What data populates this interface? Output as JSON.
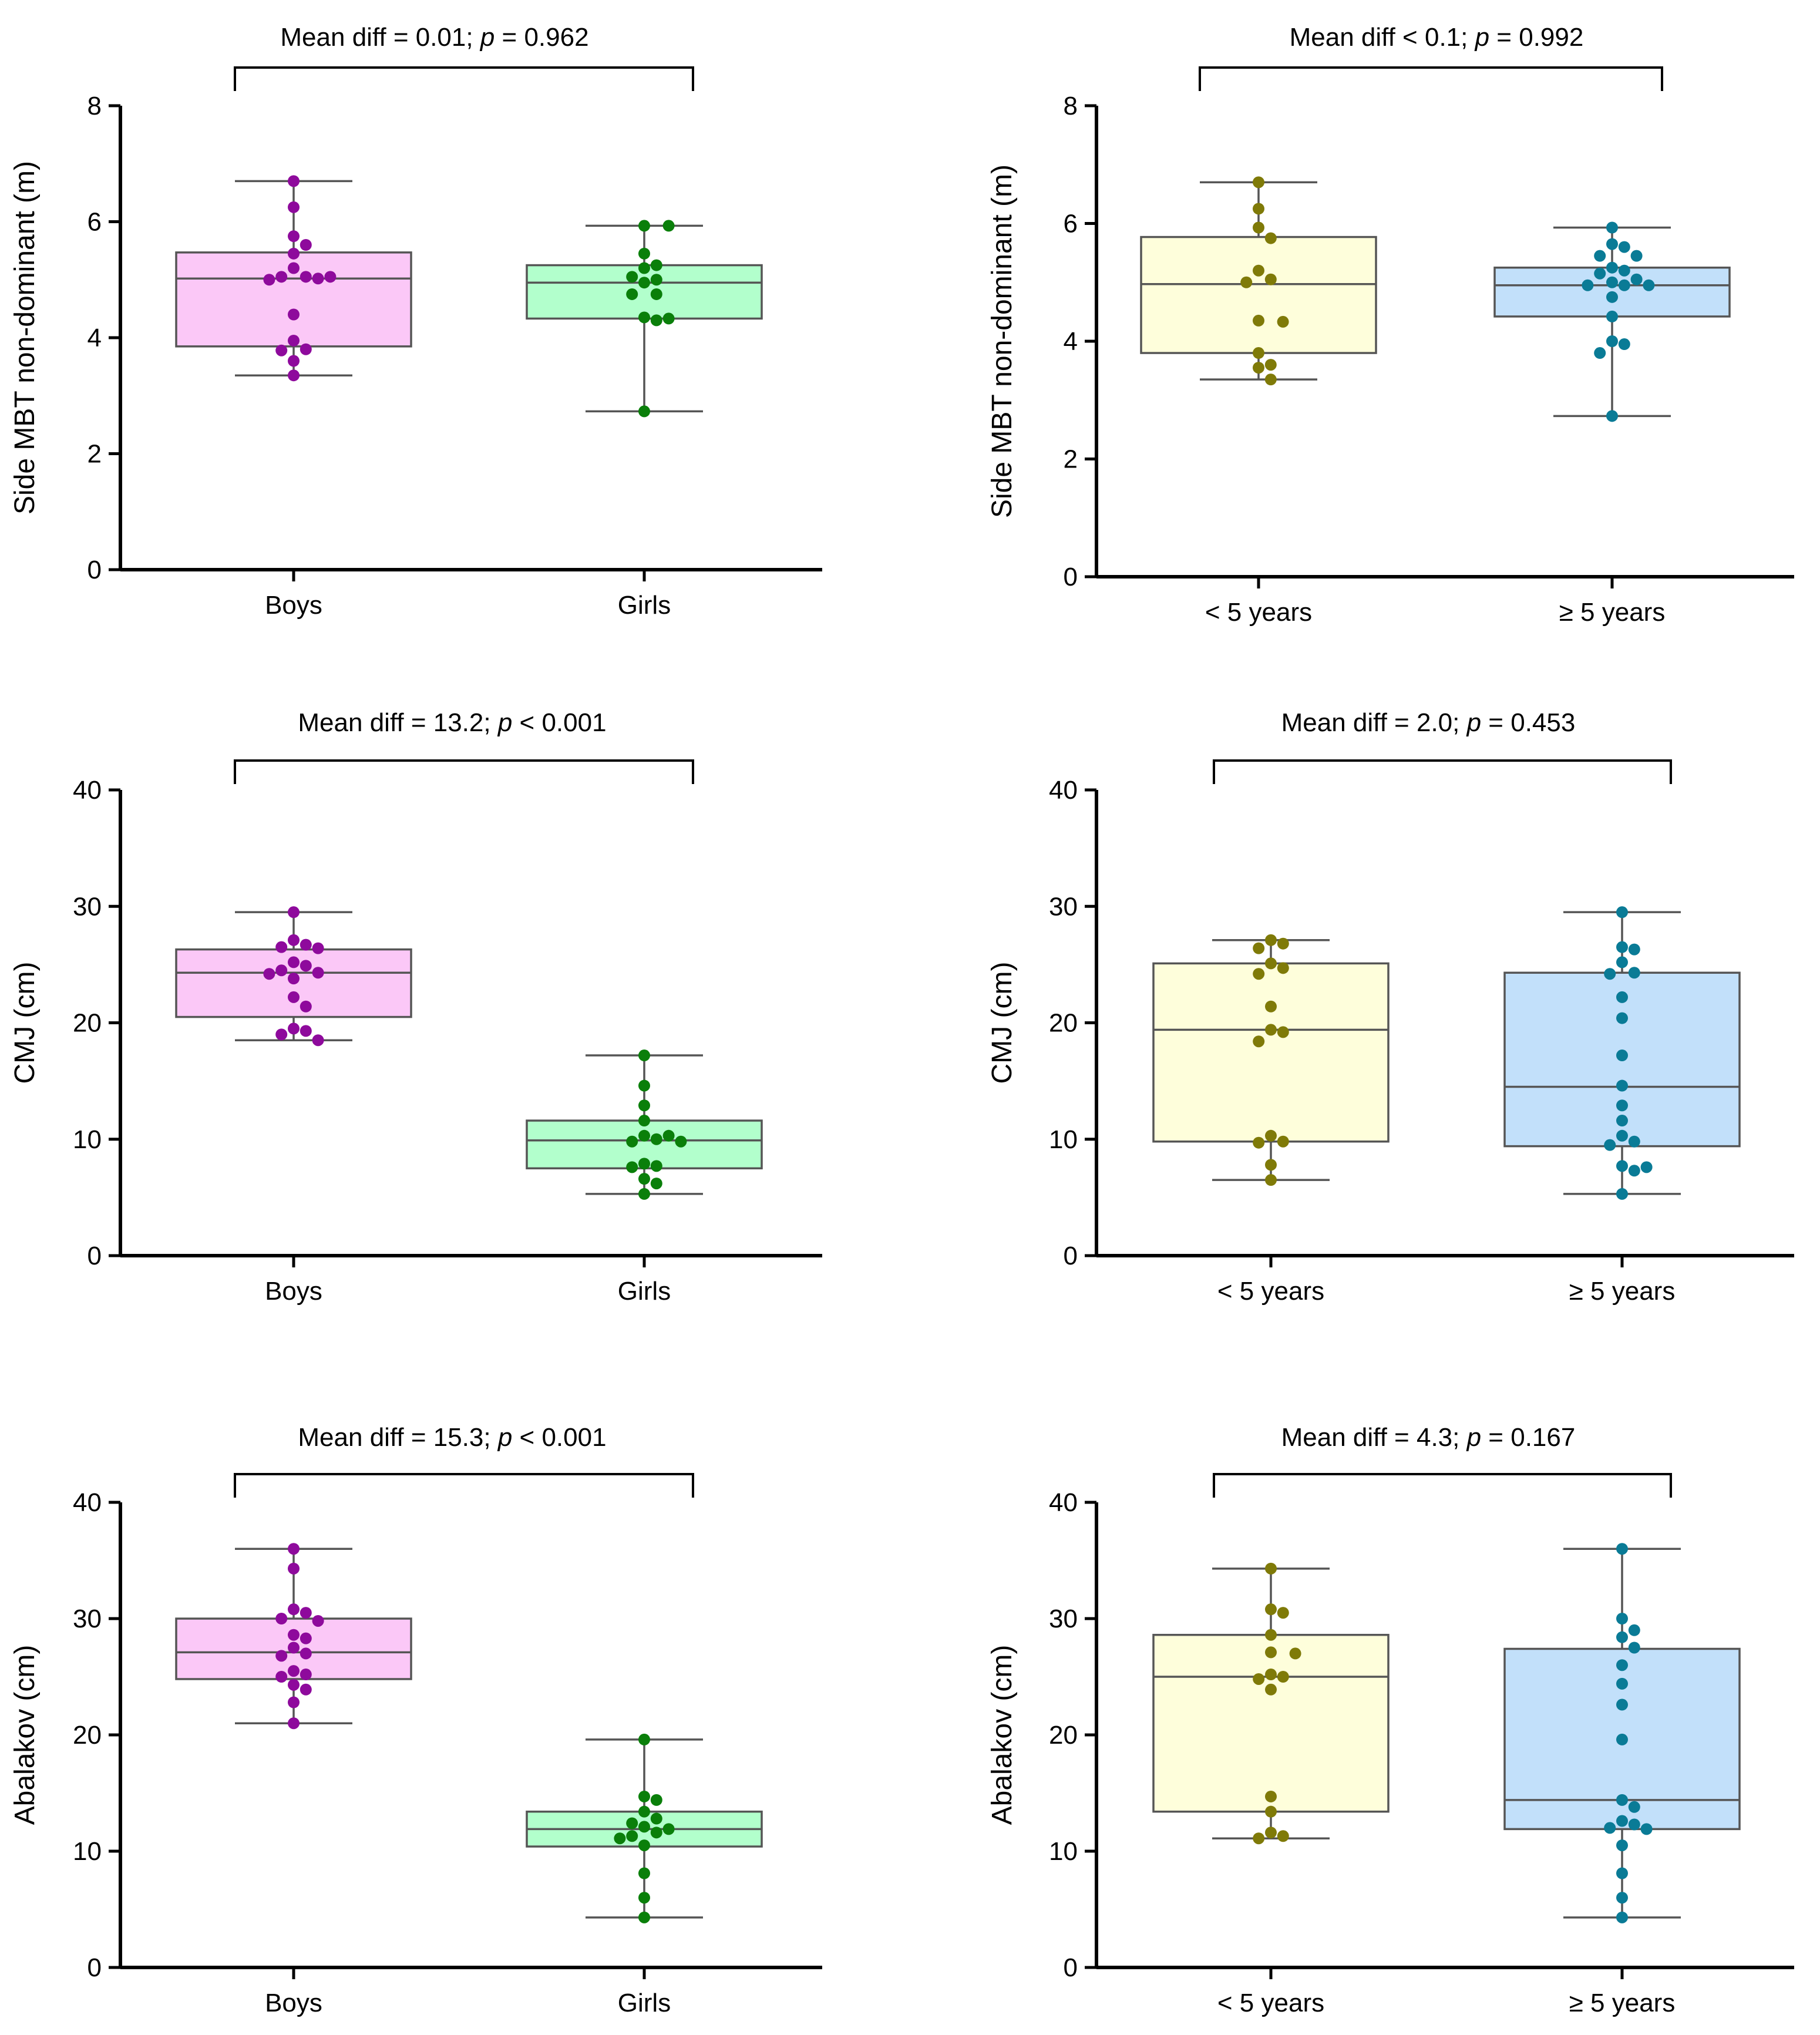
{
  "colors": {
    "boys_fill": "#fbc8f7",
    "boys_dot": "#8e0a9c",
    "girls_fill": "#b2ffcc",
    "girls_dot": "#0a7f0a",
    "under5_fill": "#fefedb",
    "under5_dot": "#7f7a08",
    "over5_fill": "#c2e0fa",
    "over5_dot": "#0a7b96"
  },
  "chart_data": [
    {
      "id": "sidembt-sex",
      "type": "box",
      "ylabel": "Side MBT non-dominant (m)",
      "ylim": [
        0,
        8
      ],
      "yticks": [
        0,
        2,
        4,
        6,
        8
      ],
      "annotation": {
        "pre": "Mean diff = 0.01; ",
        "p": "p",
        "post": " = 0.962"
      },
      "groups": [
        {
          "label": "Boys",
          "fill": "#fbc8f7",
          "dot": "#8e0a9c",
          "min": 3.35,
          "q1": 3.85,
          "median": 5.02,
          "q3": 5.47,
          "max": 6.7,
          "points": [
            6.7,
            6.25,
            5.75,
            5.6,
            5.45,
            5.2,
            5.05,
            5.05,
            5.05,
            5.02,
            5.0,
            4.4,
            3.95,
            3.8,
            3.78,
            3.6,
            3.35
          ]
        },
        {
          "label": "Girls",
          "fill": "#b2ffcc",
          "dot": "#0a7f0a",
          "min": 2.73,
          "q1": 4.33,
          "median": 4.95,
          "q3": 5.25,
          "max": 5.93,
          "points": [
            5.93,
            5.93,
            5.45,
            5.25,
            5.2,
            5.05,
            5.0,
            4.95,
            4.75,
            4.75,
            4.35,
            4.33,
            4.3,
            2.73
          ]
        }
      ]
    },
    {
      "id": "sidembt-exp",
      "type": "box",
      "ylabel": "Side MBT non-dominant (m)",
      "ylim": [
        0,
        8
      ],
      "yticks": [
        0,
        2,
        4,
        6,
        8
      ],
      "annotation": {
        "pre": "Mean diff < 0.1; ",
        "p": "p",
        "post": " = 0.992"
      },
      "groups": [
        {
          "label": "< 5 years",
          "fill": "#fefedb",
          "dot": "#7f7a08",
          "min": 3.35,
          "q1": 3.8,
          "median": 4.97,
          "q3": 5.77,
          "max": 6.7,
          "points": [
            6.7,
            6.25,
            5.93,
            5.75,
            5.2,
            5.05,
            5.0,
            4.35,
            4.33,
            3.8,
            3.6,
            3.55,
            3.35
          ]
        },
        {
          "label": "≥ 5 years",
          "fill": "#c2e0fa",
          "dot": "#0a7b96",
          "min": 2.73,
          "q1": 4.42,
          "median": 4.95,
          "q3": 5.25,
          "max": 5.93,
          "points": [
            5.93,
            5.65,
            5.6,
            5.45,
            5.45,
            5.25,
            5.2,
            5.15,
            5.05,
            5.0,
            4.95,
            4.95,
            4.95,
            4.75,
            4.42,
            4.0,
            3.95,
            3.8,
            2.73
          ]
        }
      ]
    },
    {
      "id": "cmj-sex",
      "type": "box",
      "ylabel": "CMJ (cm)",
      "ylim": [
        0,
        40
      ],
      "yticks": [
        0,
        10,
        20,
        30,
        40
      ],
      "annotation": {
        "pre": "Mean diff = 13.2; ",
        "p": "p",
        "post": " < 0.001"
      },
      "groups": [
        {
          "label": "Boys",
          "fill": "#fbc8f7",
          "dot": "#8e0a9c",
          "min": 18.5,
          "q1": 20.5,
          "median": 24.3,
          "q3": 26.3,
          "max": 29.5,
          "points": [
            29.5,
            27.1,
            26.7,
            26.5,
            26.4,
            25.2,
            24.9,
            24.5,
            24.3,
            24.2,
            23.8,
            22.2,
            21.4,
            19.5,
            19.3,
            19.0,
            18.5
          ]
        },
        {
          "label": "Girls",
          "fill": "#b2ffcc",
          "dot": "#0a7f0a",
          "min": 5.3,
          "q1": 7.5,
          "median": 9.9,
          "q3": 11.6,
          "max": 17.2,
          "points": [
            17.2,
            14.6,
            12.9,
            11.6,
            10.3,
            10.3,
            10.0,
            9.8,
            9.8,
            7.9,
            7.7,
            7.6,
            6.6,
            6.2,
            5.3
          ]
        }
      ]
    },
    {
      "id": "cmj-exp",
      "type": "box",
      "ylabel": "CMJ (cm)",
      "ylim": [
        0,
        40
      ],
      "yticks": [
        0,
        10,
        20,
        30,
        40
      ],
      "annotation": {
        "pre": "Mean diff = 2.0; ",
        "p": "p",
        "post": " = 0.453"
      },
      "groups": [
        {
          "label": "< 5 years",
          "fill": "#fefedb",
          "dot": "#7f7a08",
          "min": 6.5,
          "q1": 9.8,
          "median": 19.4,
          "q3": 25.1,
          "max": 27.1,
          "points": [
            27.1,
            26.8,
            26.4,
            25.1,
            24.7,
            24.2,
            21.4,
            19.4,
            19.2,
            18.4,
            10.3,
            9.8,
            9.7,
            7.8,
            6.5
          ]
        },
        {
          "label": "≥ 5 years",
          "fill": "#c2e0fa",
          "dot": "#0a7b96",
          "min": 5.3,
          "q1": 9.4,
          "median": 14.5,
          "q3": 24.3,
          "max": 29.5,
          "points": [
            29.5,
            26.5,
            26.3,
            25.2,
            24.3,
            24.2,
            22.2,
            20.4,
            17.2,
            14.6,
            12.9,
            11.6,
            10.3,
            9.8,
            9.5,
            7.7,
            7.6,
            7.3,
            5.3
          ]
        }
      ]
    },
    {
      "id": "abalakov-sex",
      "type": "box",
      "ylabel": "Abalakov (cm)",
      "ylim": [
        0,
        40
      ],
      "yticks": [
        0,
        10,
        20,
        30,
        40
      ],
      "annotation": {
        "pre": "Mean diff = 15.3; ",
        "p": "p",
        "post": " < 0.001"
      },
      "groups": [
        {
          "label": "Boys",
          "fill": "#fbc8f7",
          "dot": "#8e0a9c",
          "min": 21.0,
          "q1": 24.8,
          "median": 27.1,
          "q3": 30.0,
          "max": 36.0,
          "points": [
            36.0,
            34.3,
            30.8,
            30.5,
            30.0,
            29.8,
            28.6,
            28.3,
            27.5,
            27.0,
            26.8,
            25.5,
            25.2,
            25.0,
            24.3,
            23.9,
            22.8,
            21.0
          ]
        },
        {
          "label": "Girls",
          "fill": "#b2ffcc",
          "dot": "#0a7f0a",
          "min": 4.3,
          "q1": 10.4,
          "median": 11.9,
          "q3": 13.4,
          "max": 19.6,
          "points": [
            19.6,
            14.7,
            14.4,
            13.4,
            12.8,
            12.4,
            12.1,
            11.9,
            11.6,
            11.3,
            11.1,
            10.5,
            8.1,
            6.0,
            4.3
          ]
        }
      ]
    },
    {
      "id": "abalakov-exp",
      "type": "box",
      "ylabel": "Abalakov (cm)",
      "ylim": [
        0,
        40
      ],
      "yticks": [
        0,
        10,
        20,
        30,
        40
      ],
      "annotation": {
        "pre": "Mean diff = 4.3; ",
        "p": "p",
        "post": " = 0.167"
      },
      "groups": [
        {
          "label": "< 5 years",
          "fill": "#fefedb",
          "dot": "#7f7a08",
          "min": 11.1,
          "q1": 13.4,
          "median": 25.0,
          "q3": 28.6,
          "max": 34.3,
          "points": [
            34.3,
            30.8,
            30.5,
            28.6,
            27.1,
            27.0,
            25.2,
            25.0,
            24.8,
            23.9,
            14.7,
            13.4,
            11.6,
            11.3,
            11.1
          ]
        },
        {
          "label": "≥ 5 years",
          "fill": "#c2e0fa",
          "dot": "#0a7b96",
          "min": 4.3,
          "q1": 11.9,
          "median": 14.4,
          "q3": 27.4,
          "max": 36.0,
          "points": [
            36.0,
            30.0,
            29.0,
            28.4,
            27.5,
            26.0,
            24.4,
            22.6,
            19.6,
            14.4,
            13.8,
            12.6,
            12.3,
            12.0,
            11.9,
            10.5,
            8.1,
            6.0,
            4.3
          ]
        }
      ]
    }
  ]
}
